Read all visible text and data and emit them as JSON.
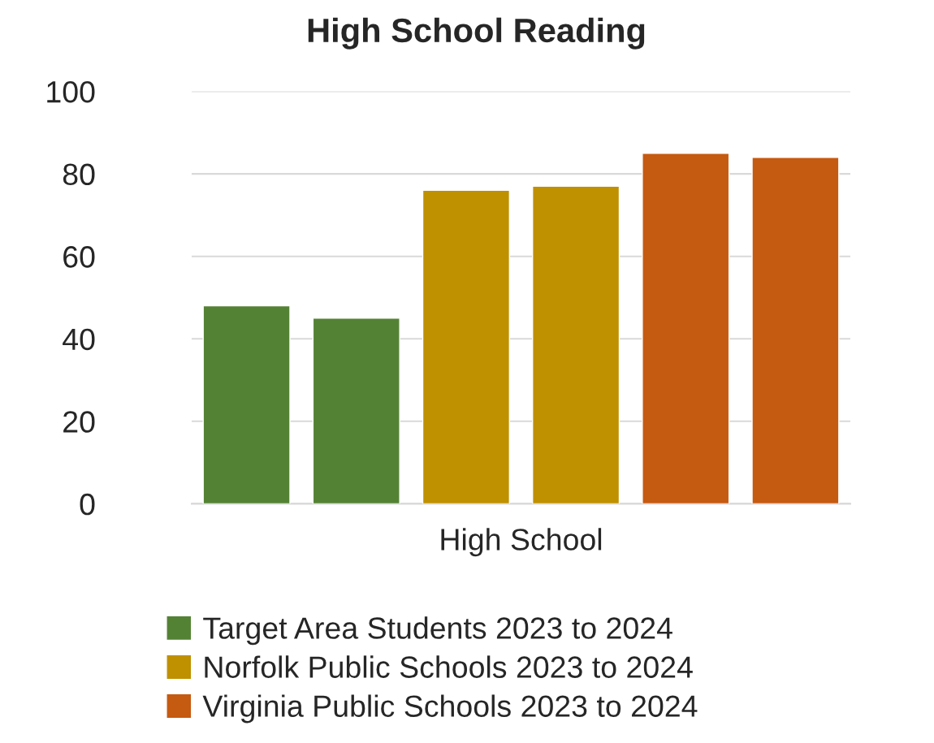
{
  "chart_data": {
    "type": "bar",
    "title": "High School Reading",
    "xlabel": "High School",
    "categories": [
      null,
      null,
      null,
      null,
      null,
      null
    ],
    "series": [
      {
        "name": "Target Area Students 2023 to 2024",
        "color": "#548235",
        "values": [
          48,
          45,
          null,
          null,
          null,
          null
        ]
      },
      {
        "name": "Norfolk Public Schools 2023 to 2024",
        "color": "#bf9000",
        "values": [
          null,
          null,
          76,
          77,
          null,
          null
        ]
      },
      {
        "name": "Virginia Public Schools 2023 to 2024",
        "color": "#c55a11",
        "values": [
          null,
          null,
          null,
          null,
          85,
          84
        ]
      }
    ],
    "ylim": [
      0,
      100
    ],
    "yticks": [
      0,
      20,
      40,
      60,
      80,
      100
    ],
    "grid": "y",
    "legend": "bottom"
  }
}
